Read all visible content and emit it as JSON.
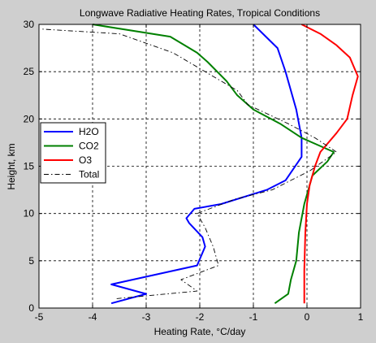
{
  "chart_data": {
    "type": "line",
    "title": "Longwave Radiative Heating Rates, Tropical Conditions",
    "xlabel": "Heating Rate, °C/day",
    "ylabel": "Height, km",
    "xlim": [
      -5,
      1
    ],
    "ylim": [
      0,
      30
    ],
    "xticks": [
      -5,
      -4,
      -3,
      -2,
      -1,
      0,
      1
    ],
    "yticks": [
      0,
      5,
      10,
      15,
      20,
      25,
      30
    ],
    "xtick_labels": [
      "-5",
      "-4",
      "-3",
      "-2",
      "-1",
      "0",
      "1"
    ],
    "ytick_labels": [
      "0",
      "5",
      "10",
      "15",
      "20",
      "25",
      "30"
    ],
    "grid": true,
    "legend_position": "center-left",
    "series": [
      {
        "name": "H2O",
        "color": "#0000ff",
        "dash": "solid",
        "points": [
          [
            -3.65,
            0.5
          ],
          [
            -3.0,
            1.5
          ],
          [
            -3.65,
            2.5
          ],
          [
            -2.05,
            4.5
          ],
          [
            -1.9,
            6.5
          ],
          [
            -1.95,
            7.5
          ],
          [
            -2.2,
            9.0
          ],
          [
            -2.25,
            9.5
          ],
          [
            -2.1,
            10.5
          ],
          [
            -1.6,
            11.0
          ],
          [
            -0.75,
            12.5
          ],
          [
            -0.4,
            13.5
          ],
          [
            -0.1,
            16.0
          ],
          [
            -0.1,
            18.0
          ],
          [
            -0.2,
            21.0
          ],
          [
            -0.4,
            25.0
          ],
          [
            -0.55,
            27.5
          ],
          [
            -1.0,
            30.0
          ]
        ]
      },
      {
        "name": "CO2",
        "color": "#008000",
        "dash": "solid",
        "points": [
          [
            -0.6,
            0.5
          ],
          [
            -0.35,
            1.5
          ],
          [
            -0.3,
            3.0
          ],
          [
            -0.2,
            5.0
          ],
          [
            -0.15,
            8.0
          ],
          [
            -0.05,
            11.0
          ],
          [
            0.05,
            13.0
          ],
          [
            0.1,
            14.0
          ],
          [
            0.38,
            15.5
          ],
          [
            0.5,
            16.5
          ],
          [
            -0.1,
            18.0
          ],
          [
            -0.5,
            19.5
          ],
          [
            -1.0,
            21.0
          ],
          [
            -1.3,
            22.5
          ],
          [
            -1.5,
            24.0
          ],
          [
            -1.85,
            26.0
          ],
          [
            -2.05,
            27.0
          ],
          [
            -2.55,
            28.7
          ],
          [
            -4.0,
            30.0
          ]
        ]
      },
      {
        "name": "O3",
        "color": "#ff0000",
        "dash": "solid",
        "points": [
          [
            -0.05,
            0.5
          ],
          [
            -0.05,
            4.0
          ],
          [
            -0.03,
            8.0
          ],
          [
            0.0,
            11.0
          ],
          [
            0.05,
            13.0
          ],
          [
            0.15,
            15.0
          ],
          [
            0.25,
            16.5
          ],
          [
            0.55,
            18.5
          ],
          [
            0.75,
            20.0
          ],
          [
            0.85,
            22.5
          ],
          [
            0.95,
            24.5
          ],
          [
            0.8,
            26.5
          ],
          [
            0.55,
            27.8
          ],
          [
            0.25,
            29.0
          ],
          [
            -0.1,
            30.0
          ]
        ]
      },
      {
        "name": "Total",
        "color": "#000000",
        "dash": "dashdot",
        "points": [
          [
            -3.55,
            1.0
          ],
          [
            -2.05,
            1.8
          ],
          [
            -2.35,
            3.0
          ],
          [
            -1.65,
            4.5
          ],
          [
            -1.75,
            6.5
          ],
          [
            -1.9,
            8.5
          ],
          [
            -2.05,
            10.0
          ],
          [
            -1.35,
            11.5
          ],
          [
            -0.65,
            12.5
          ],
          [
            -0.3,
            13.5
          ],
          [
            0.05,
            14.5
          ],
          [
            0.55,
            16.5
          ],
          [
            0.15,
            18.0
          ],
          [
            -0.35,
            19.5
          ],
          [
            -1.1,
            21.5
          ],
          [
            -1.3,
            23.0
          ],
          [
            -1.75,
            24.5
          ],
          [
            -2.5,
            27.0
          ],
          [
            -3.5,
            29.0
          ],
          [
            -4.95,
            29.5
          ]
        ]
      }
    ]
  }
}
